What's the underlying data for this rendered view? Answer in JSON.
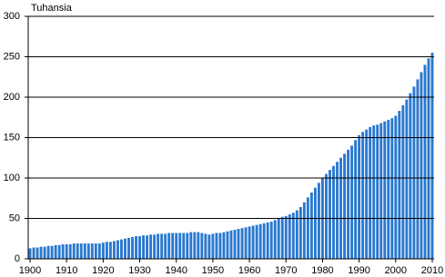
{
  "chart_data": {
    "type": "bar",
    "y_label": "Tuhansia",
    "color": "#2a78cf",
    "x": [
      1900,
      1901,
      1902,
      1903,
      1904,
      1905,
      1906,
      1907,
      1908,
      1909,
      1910,
      1911,
      1912,
      1913,
      1914,
      1915,
      1916,
      1917,
      1918,
      1919,
      1920,
      1921,
      1922,
      1923,
      1924,
      1925,
      1926,
      1927,
      1928,
      1929,
      1930,
      1931,
      1932,
      1933,
      1934,
      1935,
      1936,
      1937,
      1938,
      1939,
      1940,
      1941,
      1942,
      1943,
      1944,
      1945,
      1946,
      1947,
      1948,
      1949,
      1950,
      1951,
      1952,
      1953,
      1954,
      1955,
      1956,
      1957,
      1958,
      1959,
      1960,
      1961,
      1962,
      1963,
      1964,
      1965,
      1966,
      1967,
      1968,
      1969,
      1970,
      1971,
      1972,
      1973,
      1974,
      1975,
      1976,
      1977,
      1978,
      1979,
      1980,
      1981,
      1982,
      1983,
      1984,
      1985,
      1986,
      1987,
      1988,
      1989,
      1990,
      1991,
      1992,
      1993,
      1994,
      1995,
      1996,
      1997,
      1998,
      1999,
      2000,
      2001,
      2002,
      2003,
      2004,
      2005,
      2006,
      2007,
      2008,
      2009,
      2010
    ],
    "values": [
      13,
      14,
      14,
      15,
      15,
      16,
      16,
      17,
      17,
      18,
      18,
      18,
      19,
      19,
      19,
      19,
      19,
      19,
      19,
      19,
      20,
      21,
      21,
      22,
      23,
      24,
      25,
      26,
      27,
      28,
      28,
      29,
      29,
      30,
      30,
      31,
      31,
      31,
      32,
      32,
      32,
      32,
      32,
      32,
      33,
      33,
      33,
      32,
      31,
      30,
      31,
      32,
      32,
      33,
      34,
      35,
      36,
      37,
      38,
      39,
      40,
      41,
      42,
      43,
      44,
      45,
      46,
      48,
      50,
      52,
      53,
      55,
      57,
      60,
      64,
      70,
      76,
      82,
      88,
      94,
      100,
      105,
      110,
      115,
      120,
      125,
      130,
      135,
      140,
      147,
      153,
      157,
      160,
      163,
      165,
      166,
      168,
      170,
      172,
      174,
      177,
      183,
      190,
      197,
      205,
      213,
      222,
      231,
      240,
      248,
      255
    ],
    "xlim": [
      1899.5,
      2010.5
    ],
    "xticks": [
      1900,
      1910,
      1920,
      1930,
      1940,
      1950,
      1960,
      1970,
      1980,
      1990,
      2000,
      2010
    ],
    "ylim": [
      0,
      300
    ],
    "yticks": [
      0,
      50,
      100,
      150,
      200,
      250,
      300
    ],
    "grid": true
  }
}
